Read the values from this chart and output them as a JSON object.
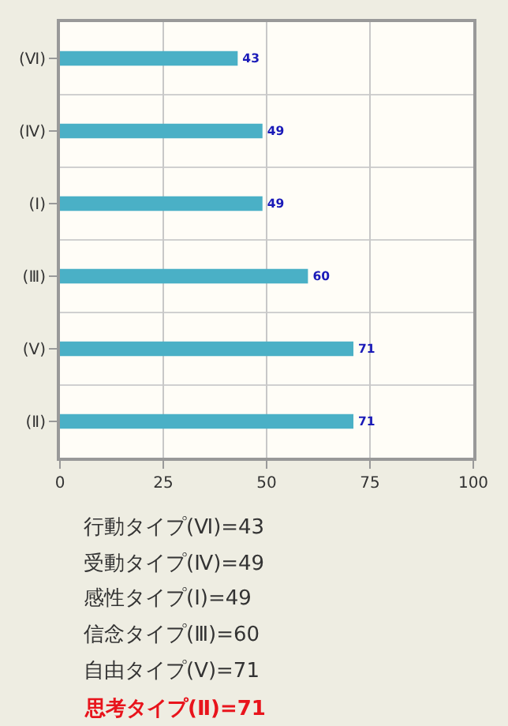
{
  "chart_data": {
    "type": "bar",
    "orientation": "horizontal",
    "categories": [
      "(Ⅵ)",
      "(Ⅳ)",
      "(Ⅰ)",
      "(Ⅲ)",
      "(Ⅴ)",
      "(Ⅱ)"
    ],
    "values": [
      43,
      49,
      49,
      60,
      71,
      71
    ],
    "color": "#4ab0c6",
    "xlim": [
      0,
      100
    ],
    "xticks": [
      0,
      25,
      50,
      75,
      100
    ],
    "grid": true,
    "data_labels": true,
    "legend": false,
    "annotations": [
      "行動タイプ(Ⅵ)=43",
      "受動タイプ(Ⅳ)=49",
      "感性タイプ(Ⅰ)=49",
      "信念タイプ(Ⅲ)=60",
      "自由タイプ(Ⅴ)=71",
      "思考タイプ(Ⅱ)=71"
    ]
  }
}
